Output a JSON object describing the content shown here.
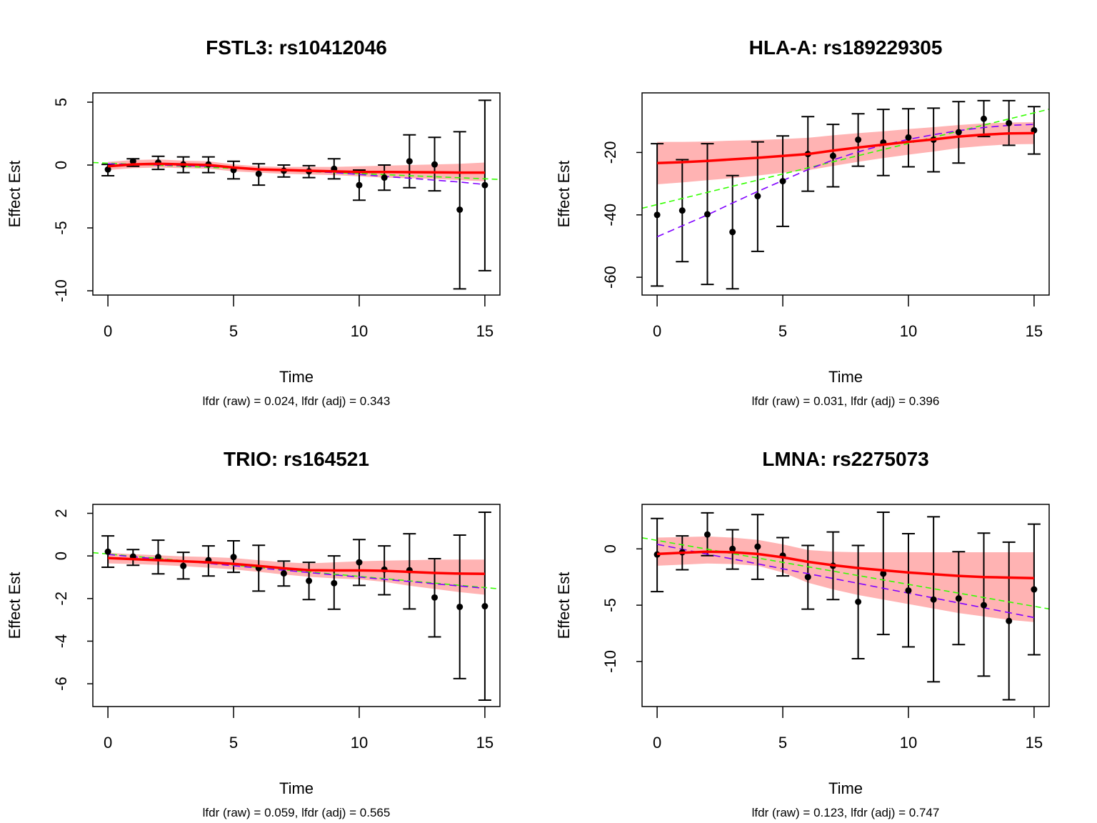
{
  "colors": {
    "smooth": "#ff0000",
    "band": "#ffb3b3",
    "linear_fit": "#33ff00",
    "quad_fit": "#8000ff",
    "points": "#000000"
  },
  "chart_data": [
    {
      "type": "scatter",
      "title": "FSTL3: rs10412046",
      "xlabel": "Time",
      "ylabel": "Effect Est",
      "subtitle": "lfdr (raw) = 0.024, lfdr (adj) = 0.343",
      "xlim": [
        -0.6,
        15.6
      ],
      "ylim": [
        -10.34,
        5.74
      ],
      "xticks": [
        0,
        5,
        10,
        15
      ],
      "yticks": [
        5,
        0,
        -5,
        -10
      ],
      "x": [
        0,
        1,
        2,
        3,
        4,
        5,
        6,
        7,
        8,
        9,
        10,
        11,
        12,
        13,
        14,
        15
      ],
      "estimate": [
        -0.35,
        0.3,
        0.2,
        0.05,
        0.05,
        -0.4,
        -0.7,
        -0.45,
        -0.5,
        -0.3,
        -1.6,
        -1.0,
        0.3,
        0.05,
        -3.55,
        -1.6
      ],
      "ci_upper": [
        0.05,
        0.5,
        0.7,
        0.65,
        0.65,
        0.3,
        0.1,
        0.0,
        -0.05,
        0.5,
        -0.4,
        0.0,
        2.4,
        2.2,
        2.65,
        5.15
      ],
      "ci_lower": [
        -0.85,
        -0.1,
        -0.35,
        -0.6,
        -0.6,
        -1.1,
        -1.6,
        -0.95,
        -1.0,
        -1.1,
        -2.8,
        -2.0,
        -1.8,
        -2.05,
        -9.85,
        -8.4
      ],
      "smooth": [
        -0.1,
        0.05,
        0.1,
        0.05,
        0,
        -0.2,
        -0.35,
        -0.4,
        -0.45,
        -0.5,
        -0.55,
        -0.55,
        -0.57,
        -0.58,
        -0.6,
        -0.6
      ],
      "band_upper": [
        0.25,
        0.4,
        0.45,
        0.35,
        0.3,
        0.05,
        -0.1,
        -0.15,
        -0.15,
        -0.15,
        -0.1,
        -0.05,
        0,
        0.05,
        0.1,
        0.2
      ],
      "band_lower": [
        -0.4,
        -0.25,
        -0.2,
        -0.25,
        -0.3,
        -0.5,
        -0.6,
        -0.7,
        -0.75,
        -0.8,
        -0.9,
        -1.0,
        -1.05,
        -1.1,
        -1.2,
        -1.3
      ],
      "quad_fit": [
        0.1,
        0.05,
        0,
        -0.05,
        -0.1,
        -0.2,
        -0.3,
        -0.4,
        -0.5,
        -0.6,
        -0.75,
        -0.9,
        -1.05,
        -1.2,
        -1.35,
        -1.55
      ],
      "linear_fit": {
        "intercept": 0.15,
        "slope": -0.083
      }
    },
    {
      "type": "scatter",
      "title": "HLA-A: rs189229305",
      "xlabel": "Time",
      "ylabel": "Effect Est",
      "subtitle": "lfdr (raw) = 0.031, lfdr (adj) = 0.396",
      "xlim": [
        -0.6,
        15.6
      ],
      "ylim": [
        -65.7,
        -0.9
      ],
      "xticks": [
        0,
        5,
        10,
        15
      ],
      "yticks": [
        -20,
        -40,
        -60
      ],
      "x": [
        0,
        1,
        2,
        3,
        4,
        5,
        6,
        7,
        8,
        9,
        10,
        11,
        12,
        13,
        14,
        15
      ],
      "estimate": [
        -40,
        -38.6,
        -39.8,
        -45.5,
        -34,
        -29.2,
        -20.5,
        -21.1,
        -15.9,
        -16.8,
        -15.2,
        -15.9,
        -13.5,
        -9.2,
        -10.6,
        -12.9
      ],
      "ci_upper": [
        -17.2,
        -22.3,
        -17.2,
        -27.4,
        -16.6,
        -14.7,
        -8.5,
        -11,
        -7.6,
        -6.2,
        -6,
        -5.8,
        -3.7,
        -3.4,
        -3.4,
        -5.3
      ],
      "ci_lower": [
        -62.8,
        -55,
        -62.3,
        -63.7,
        -51.7,
        -43.7,
        -32.4,
        -31,
        -24.4,
        -27.4,
        -24.6,
        -26.2,
        -23.4,
        -14.9,
        -17.7,
        -20.5
      ],
      "smooth": [
        -23.4,
        -23.1,
        -22.7,
        -22.2,
        -21.7,
        -21.1,
        -20.5,
        -19.4,
        -18.4,
        -17.5,
        -16.6,
        -15.8,
        -14.9,
        -14.3,
        -13.9,
        -13.8
      ],
      "band_upper": [
        -16.6,
        -16.6,
        -16.5,
        -16.2,
        -16.0,
        -15.7,
        -15.3,
        -14.5,
        -13.8,
        -13.2,
        -12.5,
        -11.9,
        -11.2,
        -10.7,
        -10.4,
        -10.3
      ],
      "band_lower": [
        -30.2,
        -29.6,
        -28.9,
        -28.2,
        -27.4,
        -26.5,
        -25.7,
        -24.3,
        -23.0,
        -21.8,
        -20.7,
        -19.7,
        -18.6,
        -17.9,
        -17.4,
        -17.3
      ],
      "quad_fit": [
        -47,
        -43.5,
        -40,
        -36.2,
        -32.5,
        -29,
        -25.5,
        -22.4,
        -19.8,
        -17.6,
        -15.8,
        -14.3,
        -13,
        -12,
        -11.3,
        -11
      ],
      "linear_fit": {
        "intercept": -36.7,
        "slope": 1.96
      }
    },
    {
      "type": "scatter",
      "title": "TRIO: rs164521",
      "xlabel": "Time",
      "ylabel": "Effect Est",
      "subtitle": "lfdr (raw) = 0.059, lfdr (adj) = 0.565",
      "xlim": [
        -0.6,
        15.6
      ],
      "ylim": [
        -7.07,
        2.42
      ],
      "xticks": [
        0,
        5,
        10,
        15
      ],
      "yticks": [
        2,
        0,
        -2,
        -4,
        -6
      ],
      "x": [
        0,
        1,
        2,
        3,
        4,
        5,
        6,
        7,
        8,
        9,
        10,
        11,
        12,
        13,
        14,
        15
      ],
      "estimate": [
        0.2,
        -0.03,
        -0.05,
        -0.47,
        -0.2,
        -0.05,
        -0.57,
        -0.82,
        -1.17,
        -1.28,
        -0.3,
        -0.64,
        -0.67,
        -1.95,
        -2.39,
        -2.36
      ],
      "ci_upper": [
        0.94,
        0.3,
        0.74,
        0.17,
        0.47,
        0.71,
        0.5,
        -0.24,
        -0.3,
        0,
        0.77,
        0.47,
        1.04,
        -0.13,
        0.98,
        2.05
      ],
      "ci_lower": [
        -0.53,
        -0.44,
        -0.84,
        -1.08,
        -0.94,
        -0.77,
        -1.65,
        -1.41,
        -2.05,
        -2.5,
        -1.38,
        -1.82,
        -2.49,
        -3.8,
        -5.76,
        -6.77
      ],
      "smooth": [
        -0.1,
        -0.15,
        -0.2,
        -0.25,
        -0.3,
        -0.37,
        -0.47,
        -0.58,
        -0.67,
        -0.68,
        -0.68,
        -0.7,
        -0.75,
        -0.8,
        -0.83,
        -0.84
      ],
      "band_upper": [
        0.15,
        0.08,
        0.03,
        -0.02,
        -0.05,
        -0.1,
        -0.2,
        -0.3,
        -0.35,
        -0.3,
        -0.25,
        -0.22,
        -0.2,
        -0.18,
        -0.17,
        -0.17
      ],
      "band_lower": [
        -0.35,
        -0.38,
        -0.42,
        -0.48,
        -0.55,
        -0.63,
        -0.75,
        -0.87,
        -0.98,
        -1.05,
        -1.1,
        -1.22,
        -1.4,
        -1.55,
        -1.7,
        -1.82
      ],
      "quad_fit": [
        0.07,
        -0.04,
        -0.14,
        -0.25,
        -0.35,
        -0.46,
        -0.57,
        -0.67,
        -0.78,
        -0.89,
        -0.99,
        -1.1,
        -1.2,
        -1.31,
        -1.41,
        -1.52
      ],
      "linear_fit": {
        "intercept": 0.09,
        "slope": -0.105
      }
    },
    {
      "type": "scatter",
      "title": "LMNA: rs2275073",
      "xlabel": "Time",
      "ylabel": "Effect Est",
      "subtitle": "lfdr (raw) = 0.123, lfdr (adj) = 0.747",
      "xlim": [
        -0.6,
        15.6
      ],
      "ylim": [
        -14.0,
        3.95
      ],
      "xticks": [
        0,
        5,
        10,
        15
      ],
      "yticks": [
        0,
        -5,
        -10
      ],
      "x": [
        0,
        1,
        2,
        3,
        4,
        5,
        6,
        7,
        8,
        9,
        10,
        11,
        12,
        13,
        14,
        15
      ],
      "estimate": [
        -0.5,
        -0.3,
        1.27,
        0,
        0.2,
        -0.6,
        -2.5,
        -1.5,
        -4.7,
        -2.2,
        -3.7,
        -4.5,
        -4.4,
        -5.0,
        -6.4,
        -3.6
      ],
      "ci_upper": [
        2.7,
        1.15,
        3.2,
        1.7,
        3.05,
        1.0,
        0.3,
        1.5,
        0.3,
        3.25,
        1.35,
        2.85,
        -0.25,
        1.4,
        0.6,
        2.2
      ],
      "ci_lower": [
        -3.8,
        -1.85,
        -0.6,
        -1.8,
        -2.7,
        -2.4,
        -5.35,
        -4.5,
        -9.75,
        -7.6,
        -8.7,
        -11.8,
        -8.5,
        -11.3,
        -13.4,
        -9.4
      ],
      "smooth": [
        -0.45,
        -0.35,
        -0.25,
        -0.3,
        -0.45,
        -0.75,
        -1.15,
        -1.45,
        -1.7,
        -1.9,
        -2.1,
        -2.25,
        -2.4,
        -2.5,
        -2.55,
        -2.6
      ],
      "band_upper": [
        1.0,
        1.05,
        1.1,
        1.0,
        0.8,
        0.4,
        -0.1,
        -0.25,
        -0.3,
        -0.3,
        -0.3,
        -0.3,
        -0.3,
        -0.3,
        -0.3,
        -0.3
      ],
      "band_lower": [
        -1.5,
        -1.4,
        -1.3,
        -1.35,
        -1.5,
        -2.1,
        -3.0,
        -3.6,
        -4.1,
        -4.5,
        -4.9,
        -5.3,
        -5.7,
        -6.0,
        -6.3,
        -6.5
      ],
      "quad_fit": [
        0.4,
        -0.03,
        -0.47,
        -0.9,
        -1.33,
        -1.77,
        -2.2,
        -2.63,
        -3.06,
        -3.5,
        -3.93,
        -4.36,
        -4.8,
        -5.23,
        -5.66,
        -6.1
      ],
      "linear_fit": {
        "intercept": 0.75,
        "slope": -0.39
      }
    }
  ]
}
